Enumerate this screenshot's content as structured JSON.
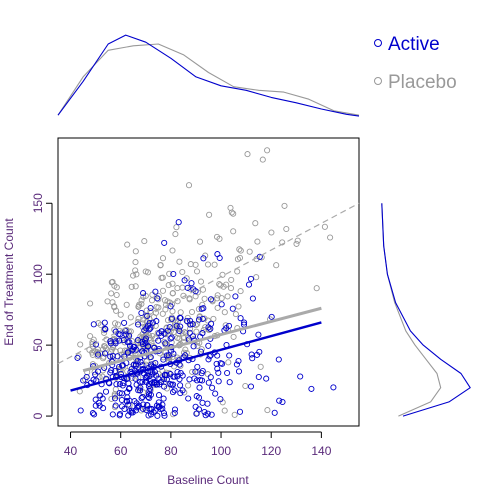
{
  "chart_data": {
    "type": "scatter",
    "xlabel": "Baseline Count",
    "ylabel": "End of Treatment Count",
    "xlim": [
      35,
      155
    ],
    "ylim": [
      -7,
      196
    ],
    "x_ticks": [
      40,
      60,
      80,
      100,
      120,
      140
    ],
    "y_ticks": [
      0,
      50,
      100,
      150
    ],
    "grid": false,
    "legend_position": "top-right",
    "marginal_plots": "density curves above (baseline) and right (end of treatment)",
    "series": [
      {
        "name": "Active",
        "color": "#0000cc",
        "marker": "open-circle",
        "fit_line": {
          "x": [
            40,
            140
          ],
          "y": [
            18,
            66
          ]
        },
        "x_density": {
          "x": [
            35,
            45,
            55,
            62,
            70,
            80,
            90,
            100,
            110,
            120,
            130,
            140,
            150,
            155
          ],
          "d": [
            0.02,
            0.4,
            0.82,
            0.92,
            0.84,
            0.66,
            0.45,
            0.35,
            0.3,
            0.22,
            0.16,
            0.09,
            0.03,
            0.01
          ]
        },
        "y_density": {
          "y": [
            0,
            10,
            20,
            30,
            40,
            50,
            60,
            80,
            100,
            120,
            150
          ],
          "d": [
            0.25,
            0.75,
            0.98,
            0.88,
            0.66,
            0.47,
            0.33,
            0.17,
            0.08,
            0.04,
            0.02
          ]
        }
      },
      {
        "name": "Placebo",
        "color": "#999999",
        "marker": "open-circle",
        "fit_line": {
          "x": [
            35,
            155
          ],
          "y": [
            37,
            150
          ]
        },
        "x_density": {
          "x": [
            35,
            45,
            55,
            65,
            75,
            85,
            95,
            105,
            115,
            125,
            135,
            145,
            155
          ],
          "d": [
            0.02,
            0.45,
            0.75,
            0.8,
            0.82,
            0.7,
            0.5,
            0.34,
            0.3,
            0.28,
            0.2,
            0.07,
            0.02
          ]
        },
        "y_density": {
          "y": [
            0,
            10,
            20,
            30,
            40,
            50,
            60,
            80,
            100,
            120,
            150
          ],
          "d": [
            0.2,
            0.55,
            0.66,
            0.62,
            0.5,
            0.38,
            0.28,
            0.16,
            0.08,
            0.04,
            0.02
          ]
        }
      }
    ],
    "points_per_series": 400,
    "point_cloud_note": "Each series: baseline roughly 40–150 (dense 45–80); end-of-treatment 0–190 scattered around the fitted line."
  }
}
